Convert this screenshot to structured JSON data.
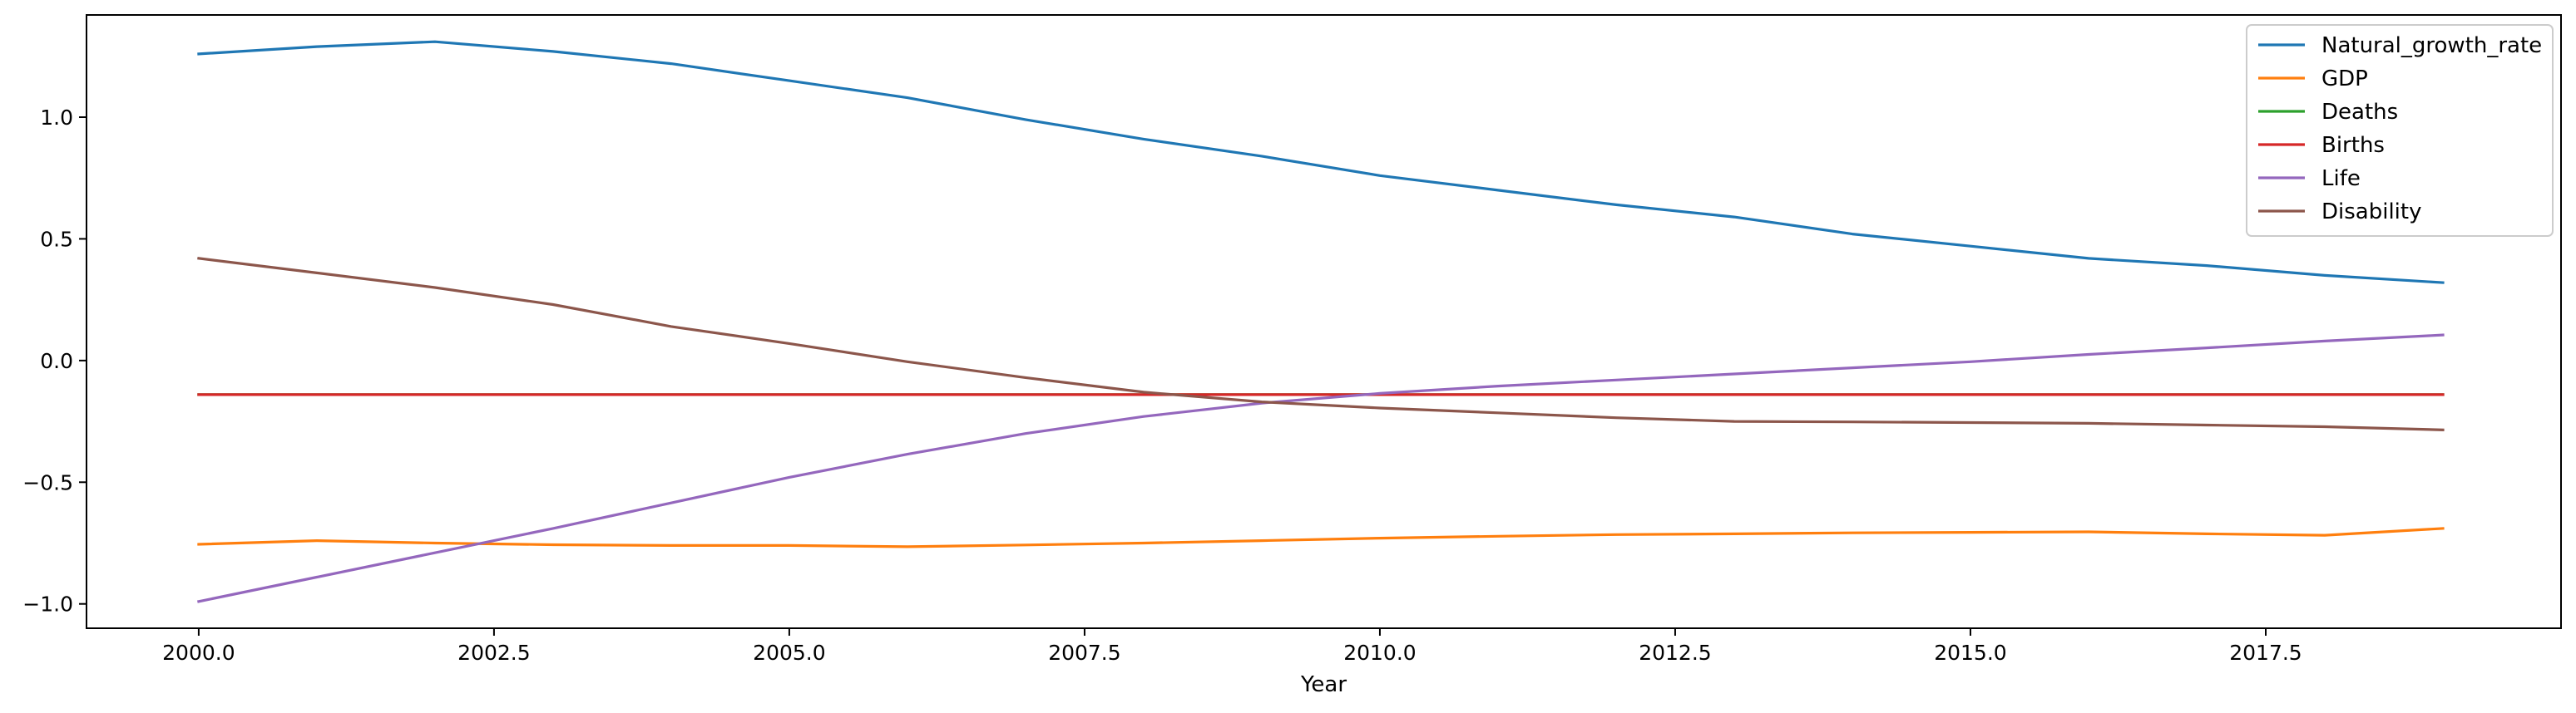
{
  "chart_data": {
    "type": "line",
    "title": "",
    "xlabel": "Year",
    "ylabel": "",
    "xlim": [
      1999.05,
      2020
    ],
    "ylim": [
      -1.1,
      1.42
    ],
    "grid": false,
    "legend_position": "top-right",
    "x_ticks": [
      2000.0,
      2002.5,
      2005.0,
      2007.5,
      2010.0,
      2012.5,
      2015.0,
      2017.5
    ],
    "x_tick_labels": [
      "2000.0",
      "2002.5",
      "2005.0",
      "2007.5",
      "2010.0",
      "2012.5",
      "2015.0",
      "2017.5"
    ],
    "y_ticks": [
      -1.0,
      -0.5,
      0.0,
      0.5,
      1.0
    ],
    "y_tick_labels": [
      "−1.0",
      "−0.5",
      "0.0",
      "0.5",
      "1.0"
    ],
    "x": [
      2000,
      2001,
      2002,
      2003,
      2004,
      2005,
      2006,
      2007,
      2008,
      2009,
      2010,
      2011,
      2012,
      2013,
      2014,
      2015,
      2016,
      2017,
      2018,
      2019
    ],
    "series": [
      {
        "name": "Natural_growth_rate",
        "color": "#1f77b4",
        "values": [
          1.26,
          1.29,
          1.31,
          1.27,
          1.22,
          1.15,
          1.08,
          0.99,
          0.91,
          0.84,
          0.76,
          0.7,
          0.64,
          0.59,
          0.52,
          0.47,
          0.42,
          0.39,
          0.35,
          0.32
        ]
      },
      {
        "name": "GDP",
        "color": "#ff7f0e",
        "values": [
          -0.755,
          -0.74,
          -0.75,
          -0.757,
          -0.76,
          -0.76,
          -0.765,
          -0.758,
          -0.75,
          -0.74,
          -0.73,
          -0.722,
          -0.715,
          -0.712,
          -0.708,
          -0.706,
          -0.704,
          -0.712,
          -0.718,
          -0.69
        ]
      },
      {
        "name": "Deaths",
        "color": "#2ca02c",
        "values": [
          -0.14,
          -0.14,
          -0.14,
          -0.14,
          -0.14,
          -0.14,
          -0.14,
          -0.14,
          -0.14,
          -0.14,
          -0.14,
          -0.14,
          -0.14,
          -0.14,
          -0.14,
          -0.14,
          -0.14,
          -0.14,
          -0.14,
          -0.14
        ]
      },
      {
        "name": "Births",
        "color": "#d62728",
        "values": [
          -0.14,
          -0.14,
          -0.14,
          -0.14,
          -0.14,
          -0.14,
          -0.14,
          -0.14,
          -0.14,
          -0.14,
          -0.14,
          -0.14,
          -0.14,
          -0.14,
          -0.14,
          -0.14,
          -0.14,
          -0.14,
          -0.14,
          -0.14
        ]
      },
      {
        "name": "Life",
        "color": "#9467bd",
        "values": [
          -0.99,
          -0.89,
          -0.79,
          -0.69,
          -0.585,
          -0.48,
          -0.385,
          -0.3,
          -0.23,
          -0.175,
          -0.135,
          -0.105,
          -0.08,
          -0.055,
          -0.03,
          -0.005,
          0.025,
          0.052,
          0.08,
          0.105
        ]
      },
      {
        "name": "Disability",
        "color": "#8c564b",
        "values": [
          0.42,
          0.36,
          0.3,
          0.23,
          0.14,
          0.07,
          -0.005,
          -0.07,
          -0.13,
          -0.17,
          -0.195,
          -0.215,
          -0.235,
          -0.25,
          -0.252,
          -0.255,
          -0.258,
          -0.265,
          -0.272,
          -0.285
        ]
      }
    ]
  }
}
